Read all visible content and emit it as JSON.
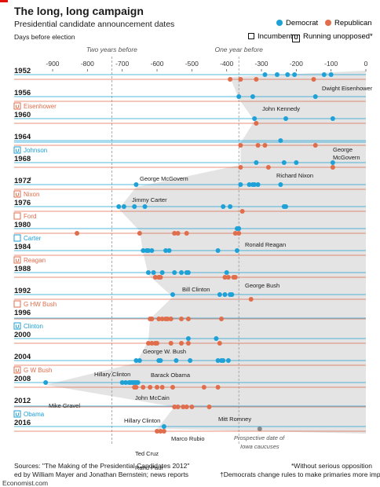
{
  "title": "The long, long campaign",
  "subtitle": "Presidential candidate announcement dates",
  "subtitle2": "Days before election",
  "legend": {
    "democrat": "Democrat",
    "republican": "Republican",
    "incumbent": "Incumbent",
    "unopposed": "Running unopposed*",
    "unopposed_marker": "U"
  },
  "colors": {
    "democrat": "#1ea1d6",
    "republican": "#e06d4c",
    "grey_area": "#e4e4e4",
    "axis_text": "#333333"
  },
  "footer": {
    "sources_1": "Sources: \"The Making of the Presidential Candidates 2012\"",
    "sources_2": "ed by William Mayer and Jonathan Bernstein; news reports",
    "note_1": "*Without serious opposition",
    "note_2": "†Democrats change rules to make primaries more important",
    "brand": "Economist.com"
  },
  "chart_data": {
    "type": "scatter",
    "xlim": [
      -950,
      0
    ],
    "x_ticks": [
      "-900",
      "-800",
      "-700",
      "-600",
      "-500",
      "-400",
      "-300",
      "-200",
      "-100",
      "0"
    ],
    "reference_lines": [
      {
        "x": -730,
        "label": "Two years before"
      },
      {
        "x": -365,
        "label": "One year before"
      }
    ],
    "years": [
      {
        "year": "1952",
        "dem": [
          -290,
          -255,
          -225,
          -205,
          -120,
          -100
        ],
        "rep": [
          -390,
          -360,
          -315,
          -150
        ]
      },
      {
        "year": "1956",
        "dem": [
          -365,
          -325,
          -145
        ],
        "rep": [],
        "unopposed": "rep",
        "incumbent_label": "Eisenhower"
      },
      {
        "year": "1960",
        "dem": [
          -320,
          -230,
          -95
        ],
        "rep": [
          -315
        ]
      },
      {
        "year": "1964",
        "dem": [
          -245
        ],
        "rep": [
          -360,
          -310,
          -290,
          -145
        ],
        "unopposed": "dem",
        "incumbent_label": "Johnson"
      },
      {
        "year": "1968",
        "dem": [
          -315,
          -235,
          -200,
          -95
        ],
        "rep": [
          -360,
          -280,
          -95
        ]
      },
      {
        "year": "1972",
        "dem": [
          -660,
          -360,
          -335,
          -325,
          -320,
          -310,
          -245
        ],
        "rep": [],
        "unopposed": "rep",
        "incumbent_label": "Nixon",
        "dagger": "†"
      },
      {
        "year": "1976",
        "dem": [
          -710,
          -695,
          -665,
          -635,
          -410,
          -390,
          -235,
          -230
        ],
        "rep": [
          -355
        ],
        "incumbent_party": "rep",
        "incumbent_label": "Ford"
      },
      {
        "year": "1980",
        "dem": [
          -370,
          -365
        ],
        "rep": [
          -830,
          -650,
          -550,
          -540,
          -515,
          -375,
          -365
        ],
        "incumbent_party": "dem",
        "incumbent_label": "Carter"
      },
      {
        "year": "1984",
        "dem": [
          -640,
          -630,
          -625,
          -615,
          -575,
          -565,
          -425,
          -370
        ],
        "rep": [],
        "unopposed": "rep",
        "incumbent_label": "Reagan"
      },
      {
        "year": "1988",
        "dem": [
          -625,
          -610,
          -585,
          -550,
          -530,
          -515,
          -510,
          -400
        ],
        "rep": [
          -605,
          -595,
          -590,
          -405,
          -395,
          -380,
          -375
        ]
      },
      {
        "year": "1992",
        "dem": [
          -555,
          -420,
          -405,
          -390,
          -385
        ],
        "rep": [
          -330
        ],
        "incumbent_party": "rep",
        "incumbent_label": "G HW Bush"
      },
      {
        "year": "1996",
        "dem": [],
        "rep": [
          -620,
          -615,
          -595,
          -585,
          -575,
          -570,
          -560,
          -530,
          -510,
          -415
        ],
        "unopposed": "dem",
        "incumbent_label": "Clinton"
      },
      {
        "year": "2000",
        "dem": [
          -510,
          -430
        ],
        "rep": [
          -625,
          -615,
          -605,
          -600,
          -560,
          -530,
          -510,
          -420
        ]
      },
      {
        "year": "2004",
        "dem": [
          -660,
          -650,
          -595,
          -590,
          -545,
          -505,
          -425,
          -415,
          -410,
          -395
        ],
        "rep": [],
        "unopposed": "rep",
        "incumbent_label": "G W Bush"
      },
      {
        "year": "2008",
        "dem": [
          -920,
          -700,
          -690,
          -680,
          -675,
          -670,
          -665,
          -660,
          -655
        ],
        "rep": [
          -665,
          -660,
          -640,
          -620,
          -600,
          -585,
          -555,
          -465,
          -425
        ]
      },
      {
        "year": "2012",
        "dem": [],
        "rep": [
          -550,
          -540,
          -525,
          -515,
          -500,
          -450
        ],
        "unopposed": "dem",
        "incumbent_label": "Obama"
      },
      {
        "year": "2016",
        "dem": [
          -580
        ],
        "rep": [
          -600,
          -590,
          -580
        ],
        "grey_marker": -305
      }
    ],
    "annotations": [
      {
        "text": "Dwight Eisenhower"
      },
      {
        "text": "John Kennedy"
      },
      {
        "text": "George"
      },
      {
        "text": "McGovern"
      },
      {
        "text": "Richard Nixon"
      },
      {
        "text": "George McGovern"
      },
      {
        "text": "Jimmy Carter"
      },
      {
        "text": "Ronald Reagan"
      },
      {
        "text": "George Bush"
      },
      {
        "text": "Bill Clinton"
      },
      {
        "text": "George W. Bush"
      },
      {
        "text": "Hillary Clinton"
      },
      {
        "text": "Barack Obama"
      },
      {
        "text": "Mike Gravel"
      },
      {
        "text": "John McCain"
      },
      {
        "text": "Mitt Romney"
      },
      {
        "text": "Hillary Clinton"
      },
      {
        "text": "Ted Cruz"
      },
      {
        "text": "Marco Rubio"
      },
      {
        "text": "Rand Paul"
      },
      {
        "text": "Prospective date of"
      },
      {
        "text": "Iowa caucuses"
      }
    ]
  }
}
